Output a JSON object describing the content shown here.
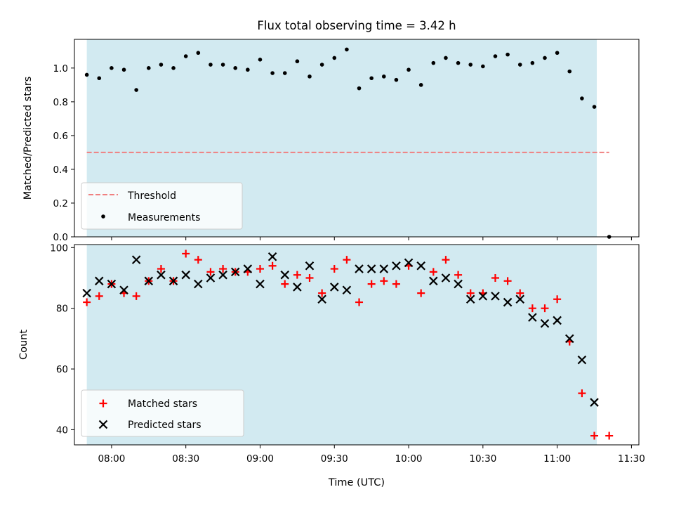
{
  "chart_data": [
    {
      "type": "scatter",
      "title": "Flux total observing time = 3.42 h",
      "xlabel": "",
      "ylabel": "Matched/Predicted stars",
      "ylim": [
        0,
        1.17
      ],
      "yticks": [
        "0.0",
        "0.2",
        "0.4",
        "0.6",
        "0.8",
        "1.0"
      ],
      "shaded_span": {
        "start": "07:50",
        "end": "11:16",
        "color": "#add8e6"
      },
      "threshold": {
        "name": "Threshold",
        "value": 0.5,
        "color": "#f08080",
        "style": "dashed",
        "x_start": "07:50",
        "x_end": "11:21"
      },
      "legend": {
        "position": "lower-left",
        "entries": [
          "Threshold",
          "Measurements"
        ]
      },
      "series": [
        {
          "name": "Measurements",
          "color": "#000000",
          "marker": "dot",
          "x": [
            "07:50",
            "07:55",
            "08:00",
            "08:05",
            "08:10",
            "08:15",
            "08:20",
            "08:25",
            "08:30",
            "08:35",
            "08:40",
            "08:45",
            "08:50",
            "08:55",
            "09:00",
            "09:05",
            "09:10",
            "09:15",
            "09:20",
            "09:25",
            "09:30",
            "09:35",
            "09:40",
            "09:45",
            "09:50",
            "09:55",
            "10:00",
            "10:05",
            "10:10",
            "10:15",
            "10:20",
            "10:25",
            "10:30",
            "10:35",
            "10:40",
            "10:45",
            "10:50",
            "10:55",
            "11:00",
            "11:05",
            "11:10",
            "11:15",
            "11:21"
          ],
          "y": [
            0.96,
            0.94,
            1.0,
            0.99,
            0.87,
            1.0,
            1.02,
            1.0,
            1.07,
            1.09,
            1.02,
            1.02,
            1.0,
            0.99,
            1.05,
            0.97,
            0.97,
            1.04,
            0.95,
            1.02,
            1.06,
            1.11,
            0.88,
            0.94,
            0.95,
            0.93,
            0.99,
            0.9,
            1.03,
            1.06,
            1.03,
            1.02,
            1.01,
            1.07,
            1.08,
            1.02,
            1.03,
            1.06,
            1.09,
            0.98,
            0.82,
            0.77,
            0.0
          ]
        }
      ]
    },
    {
      "type": "scatter",
      "title": "",
      "xlabel": "Time (UTC)",
      "ylabel": "Count",
      "ylim": [
        35,
        101
      ],
      "yticks": [
        "40",
        "60",
        "80",
        "100"
      ],
      "xticks": [
        "08:00",
        "08:30",
        "09:00",
        "09:30",
        "10:00",
        "10:30",
        "11:00",
        "11:30"
      ],
      "shaded_span": {
        "start": "07:50",
        "end": "11:16",
        "color": "#add8e6"
      },
      "legend": {
        "position": "lower-left",
        "entries": [
          "Matched stars",
          "Predicted stars"
        ]
      },
      "series": [
        {
          "name": "Matched stars",
          "color": "#ff0000",
          "marker": "plus",
          "x": [
            "07:50",
            "07:55",
            "08:00",
            "08:05",
            "08:10",
            "08:15",
            "08:20",
            "08:25",
            "08:30",
            "08:35",
            "08:40",
            "08:45",
            "08:50",
            "08:55",
            "09:00",
            "09:05",
            "09:10",
            "09:15",
            "09:20",
            "09:25",
            "09:30",
            "09:35",
            "09:40",
            "09:45",
            "09:50",
            "09:55",
            "10:00",
            "10:05",
            "10:10",
            "10:15",
            "10:20",
            "10:25",
            "10:30",
            "10:35",
            "10:40",
            "10:45",
            "10:50",
            "10:55",
            "11:00",
            "11:05",
            "11:10",
            "11:15",
            "11:21"
          ],
          "y": [
            82,
            84,
            88,
            85,
            84,
            89,
            93,
            89,
            98,
            96,
            92,
            93,
            92,
            92,
            93,
            94,
            88,
            91,
            90,
            85,
            93,
            96,
            82,
            88,
            89,
            88,
            94,
            85,
            92,
            96,
            91,
            85,
            85,
            90,
            89,
            85,
            80,
            80,
            83,
            69,
            52,
            38,
            38
          ]
        },
        {
          "name": "Predicted stars",
          "color": "#000000",
          "marker": "x",
          "x": [
            "07:50",
            "07:55",
            "08:00",
            "08:05",
            "08:10",
            "08:15",
            "08:20",
            "08:25",
            "08:30",
            "08:35",
            "08:40",
            "08:45",
            "08:50",
            "08:55",
            "09:00",
            "09:05",
            "09:10",
            "09:15",
            "09:20",
            "09:25",
            "09:30",
            "09:35",
            "09:40",
            "09:45",
            "09:50",
            "09:55",
            "10:00",
            "10:05",
            "10:10",
            "10:15",
            "10:20",
            "10:25",
            "10:30",
            "10:35",
            "10:40",
            "10:45",
            "10:50",
            "10:55",
            "11:00",
            "11:05",
            "11:10",
            "11:15"
          ],
          "y": [
            85,
            89,
            88,
            86,
            96,
            89,
            91,
            89,
            91,
            88,
            90,
            91,
            92,
            93,
            88,
            97,
            91,
            87,
            94,
            83,
            87,
            86,
            93,
            93,
            93,
            94,
            95,
            94,
            89,
            90,
            88,
            83,
            84,
            84,
            82,
            83,
            77,
            75,
            76,
            70,
            63,
            49
          ]
        }
      ]
    }
  ]
}
